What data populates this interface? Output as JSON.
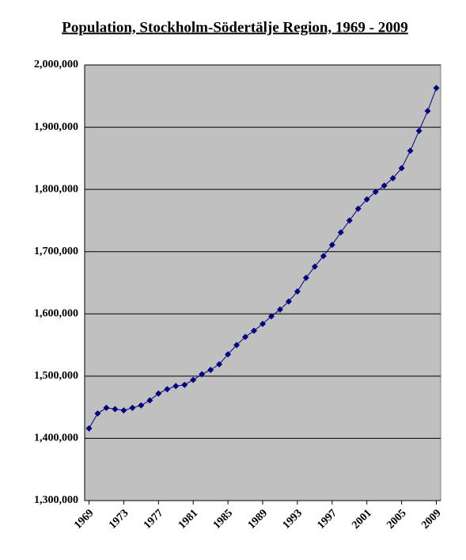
{
  "chart_data": {
    "type": "line",
    "title": "Population, Stockholm-Södertälje Region, 1969 - 2009",
    "x": [
      1969,
      1970,
      1971,
      1972,
      1973,
      1974,
      1975,
      1976,
      1977,
      1978,
      1979,
      1980,
      1981,
      1982,
      1983,
      1984,
      1985,
      1986,
      1987,
      1988,
      1989,
      1990,
      1991,
      1992,
      1993,
      1994,
      1995,
      1996,
      1997,
      1998,
      1999,
      2000,
      2001,
      2002,
      2003,
      2004,
      2005,
      2006,
      2007,
      2008,
      2009
    ],
    "xlim": [
      1968.5,
      2009.5
    ],
    "xticks": [
      1969,
      1973,
      1977,
      1981,
      1985,
      1989,
      1993,
      1997,
      2001,
      2005,
      2009
    ],
    "series": [
      {
        "name": "Population",
        "color": "#000080",
        "values": [
          1416000,
          1440000,
          1449000,
          1447000,
          1445000,
          1449000,
          1453000,
          1461000,
          1472000,
          1479000,
          1484000,
          1486000,
          1494000,
          1503000,
          1510000,
          1519000,
          1535000,
          1550000,
          1563000,
          1573000,
          1584000,
          1596000,
          1607000,
          1620000,
          1636000,
          1658000,
          1676000,
          1693000,
          1711000,
          1731000,
          1750000,
          1769000,
          1784000,
          1796000,
          1806000,
          1818000,
          1834000,
          1862000,
          1894000,
          1926000,
          1963000
        ]
      }
    ],
    "ylim": [
      1300000,
      2000000
    ],
    "yticks": [
      {
        "value": 1300000,
        "label": "1,300,000"
      },
      {
        "value": 1400000,
        "label": "1,400,000"
      },
      {
        "value": 1500000,
        "label": "1,500,000"
      },
      {
        "value": 1600000,
        "label": "1,600,000"
      },
      {
        "value": 1700000,
        "label": "1,700,000"
      },
      {
        "value": 1800000,
        "label": "1,800,000"
      },
      {
        "value": 1900000,
        "label": "1,900,000"
      },
      {
        "value": 2000000,
        "label": "2,000,000"
      }
    ],
    "grid": true,
    "plot_background": "#c0c0c0"
  }
}
